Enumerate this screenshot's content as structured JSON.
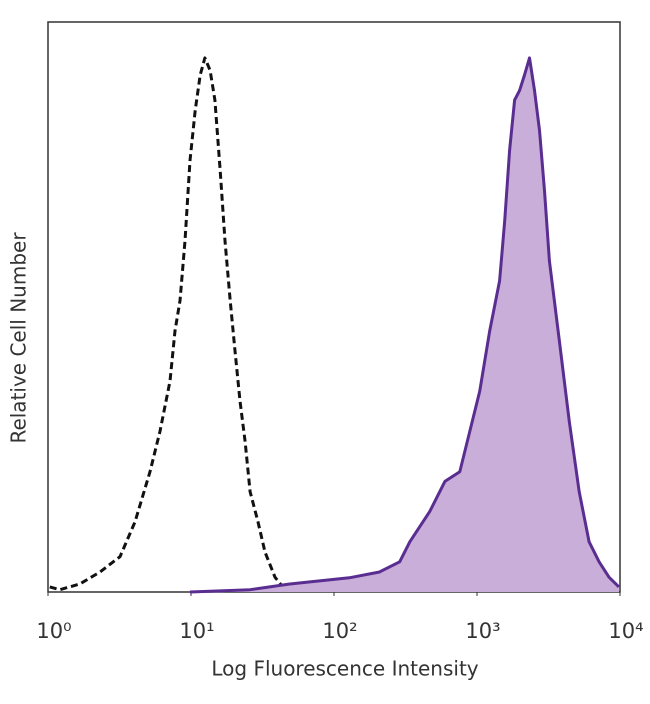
{
  "chart_data": {
    "type": "histogram-overlay",
    "x_label": "Log Fluorescence Intensity",
    "y_label": "Relative Cell Number",
    "xscale": "log",
    "xlim": [
      1,
      10000
    ],
    "ylim": [
      0,
      100
    ],
    "xticks": [
      {
        "value": 1,
        "label": "10⁰"
      },
      {
        "value": 10,
        "label": "10¹"
      },
      {
        "value": 100,
        "label": "10²"
      },
      {
        "value": 1000,
        "label": "10³"
      },
      {
        "value": 10000,
        "label": "10⁴"
      }
    ],
    "series": [
      {
        "color": "#111111",
        "style": "dashed",
        "fill": null,
        "x": [
          1.03,
          1.21,
          1.67,
          2.31,
          3.19,
          4.06,
          5.17,
          6.07,
          7.13,
          7.73,
          8.38,
          9.08,
          9.84,
          10.7,
          11.6,
          12.5,
          13.6,
          14.7,
          16.0,
          17.3,
          18.8,
          20.3,
          22.0,
          23.9,
          25.9,
          29.4,
          32.9,
          38.7,
          45.4
        ],
        "values": [
          0.9,
          0.4,
          1.4,
          3.5,
          6.2,
          12.3,
          21.1,
          28.2,
          37.0,
          45.8,
          51.1,
          61.6,
          75.7,
          84.5,
          90.7,
          93.7,
          91.5,
          86.3,
          73.9,
          61.6,
          51.1,
          42.3,
          33.5,
          26.4,
          17.6,
          12.3,
          7.0,
          2.6,
          0.4
        ]
      },
      {
        "color": "#5a2d91",
        "style": "solid",
        "fill": "#c9aed9",
        "x": [
          9.84,
          25.9,
          49.1,
          128,
          208,
          288,
          339,
          467,
          596,
          758,
          890,
          1045,
          1227,
          1440,
          1561,
          1690,
          1832,
          1985,
          2150,
          2330,
          2525,
          2735,
          2963,
          3210,
          3766,
          4419,
          5185,
          6084,
          7138,
          8375,
          9827
        ],
        "values": [
          0,
          0.4,
          1.4,
          2.5,
          3.5,
          5.3,
          8.8,
          14.1,
          19.4,
          21.1,
          28.2,
          35.2,
          45.8,
          54.6,
          65.1,
          77.5,
          86.3,
          88.0,
          90.7,
          93.7,
          88.0,
          81.0,
          70.4,
          58.1,
          44.0,
          29.9,
          17.6,
          8.8,
          5.3,
          2.6,
          0.9
        ]
      }
    ]
  }
}
